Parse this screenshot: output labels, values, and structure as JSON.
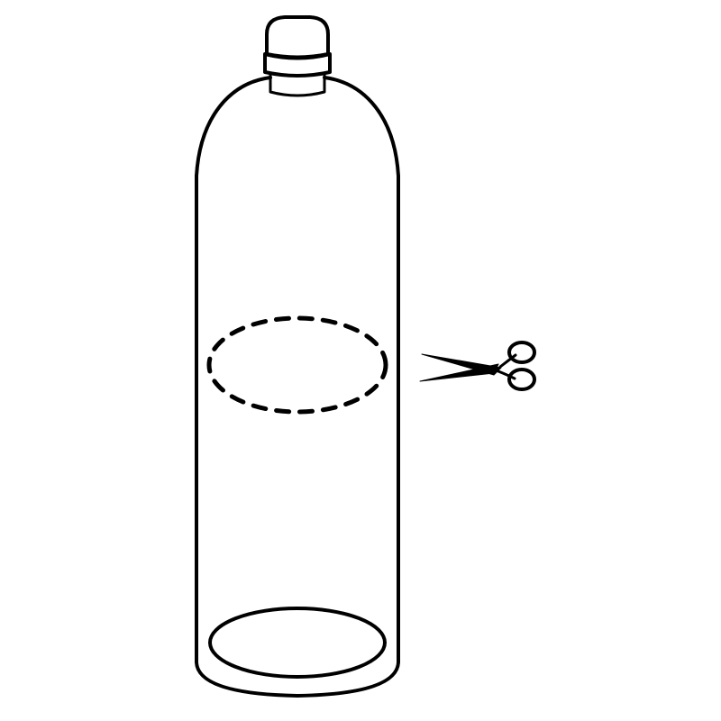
{
  "illustration": {
    "subject": "plastic-bottle-cut-line",
    "icon": "scissors-icon",
    "colors": {
      "ink": "#000000",
      "background": "#ffffff"
    }
  }
}
